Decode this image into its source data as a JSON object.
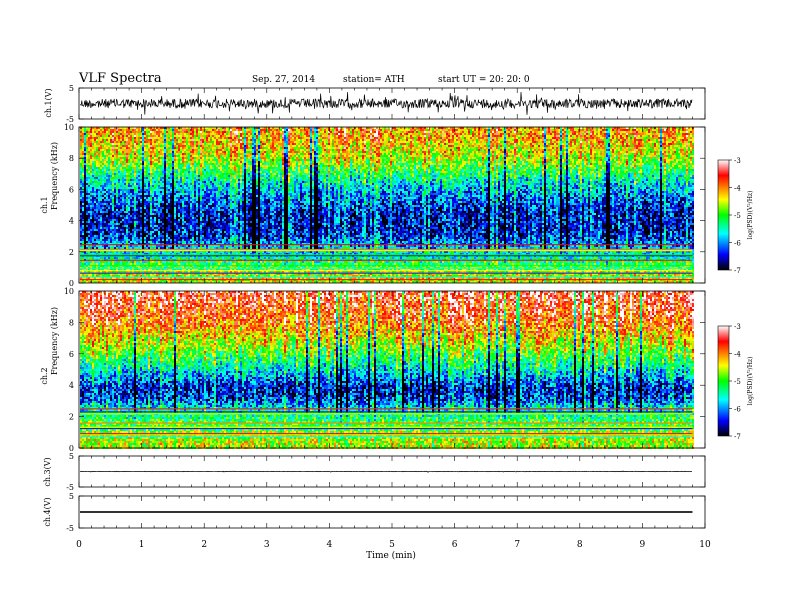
{
  "header": {
    "title": "VLF  Spectra",
    "date": "Sep. 27, 2014",
    "station": "station= ATH",
    "start": "start  UT  =    20: 20: 0"
  },
  "colors": {
    "spectrogram_scale": [
      "#000000",
      "#0000ff",
      "#00ffff",
      "#00ff00",
      "#ffff00",
      "#ff8000",
      "#ff0000",
      "#ffffff"
    ]
  },
  "chart_data": [
    {
      "type": "line",
      "panel": "ch1-waveform",
      "ylabel": "ch.1(V)",
      "ylim": [
        -5,
        5
      ],
      "yticks": [
        "5",
        "-5"
      ],
      "xlim": [
        0,
        10
      ],
      "trace_baseline": 0,
      "trace_noise_amplitude": 1.5,
      "trace_end_min": 9.8
    },
    {
      "type": "heatmap",
      "panel": "ch1-spectrogram",
      "ylabel": "ch.1",
      "ylabel2": "Frequency  (kHz)",
      "ylim": [
        0,
        10
      ],
      "yticks": [
        "0",
        "2",
        "4",
        "6",
        "8",
        "10"
      ],
      "xlim": [
        0,
        10
      ],
      "data_end_min": 9.8,
      "colorbar": {
        "label": "log(PSD)(V²/Hz)",
        "range": [
          -7,
          -3
        ],
        "ticks": [
          "-3",
          "-4",
          "-5",
          "-6",
          "-7"
        ]
      },
      "profile_khz": [
        0.5,
        1.5,
        2.5,
        3.0,
        3.5,
        4.5,
        5.5,
        6.5,
        8.0,
        9.5
      ],
      "profile_logpsd": [
        -4.5,
        -5.4,
        -6.0,
        -6.4,
        -6.5,
        -6.5,
        -6.1,
        -5.6,
        -4.6,
        -4.1
      ]
    },
    {
      "type": "heatmap",
      "panel": "ch2-spectrogram",
      "ylabel": "ch.2",
      "ylabel2": "Frequency  (kHz)",
      "ylim": [
        0,
        10
      ],
      "yticks": [
        "0",
        "2",
        "4",
        "6",
        "8",
        "10"
      ],
      "xlim": [
        0,
        10
      ],
      "data_end_min": 9.8,
      "colorbar": {
        "label": "log(PSD)(V²/Hz)",
        "range": [
          -7,
          -3
        ],
        "ticks": [
          "-3",
          "-4",
          "-5",
          "-6",
          "-7"
        ]
      },
      "profile_khz": [
        0.5,
        1.5,
        2.5,
        3.0,
        3.5,
        4.0,
        4.5,
        5.5,
        6.5,
        8.0,
        9.5
      ],
      "profile_logpsd": [
        -4.6,
        -5.0,
        -5.6,
        -6.2,
        -6.5,
        -6.4,
        -6.0,
        -5.3,
        -4.7,
        -3.9,
        -3.5
      ]
    },
    {
      "type": "line",
      "panel": "ch3-waveform",
      "ylabel": "ch.3(V)",
      "ylim": [
        -5,
        5
      ],
      "yticks": [
        "5",
        "-5"
      ],
      "xlim": [
        0,
        10
      ],
      "trace_baseline": 0,
      "trace_noise_amplitude": 0.08,
      "trace_end_min": 9.8
    },
    {
      "type": "line",
      "panel": "ch4-waveform",
      "ylabel": "ch.4(V)",
      "ylim": [
        -5,
        5
      ],
      "yticks": [
        "5",
        "-5"
      ],
      "xlim": [
        0,
        10
      ],
      "trace_baseline": 0,
      "trace_noise_amplitude": 0.25,
      "trace_end_min": 9.8
    }
  ],
  "xaxis": {
    "label": "Time  (min)",
    "ticks": [
      "0",
      "1",
      "2",
      "3",
      "4",
      "5",
      "6",
      "7",
      "8",
      "9",
      "10"
    ]
  }
}
